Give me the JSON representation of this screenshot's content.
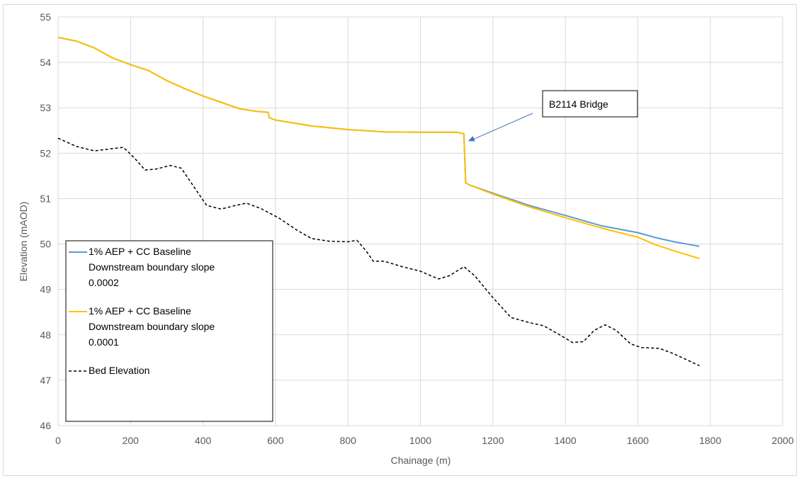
{
  "chart_data": {
    "type": "line",
    "xlabel": "Chainage (m)",
    "ylabel": "Elevation (mAOD)",
    "xlim": [
      0,
      2000
    ],
    "ylim": [
      46,
      55
    ],
    "xticks": [
      0,
      200,
      400,
      600,
      800,
      1000,
      1200,
      1400,
      1600,
      1800,
      2000
    ],
    "yticks": [
      46,
      47,
      48,
      49,
      50,
      51,
      52,
      53,
      54,
      55
    ],
    "grid": true,
    "legend_position": "bottom-left",
    "series": [
      {
        "name": "1% AEP + CC Baseline Downstream boundary slope 0.0002",
        "color": "#5b9bd5",
        "dash": "solid",
        "points": [
          [
            0,
            54.55
          ],
          [
            50,
            54.47
          ],
          [
            100,
            54.32
          ],
          [
            150,
            54.1
          ],
          [
            200,
            53.95
          ],
          [
            250,
            53.82
          ],
          [
            300,
            53.6
          ],
          [
            350,
            53.42
          ],
          [
            400,
            53.26
          ],
          [
            450,
            53.12
          ],
          [
            500,
            52.98
          ],
          [
            550,
            52.92
          ],
          [
            580,
            52.9
          ],
          [
            583,
            52.78
          ],
          [
            600,
            52.73
          ],
          [
            700,
            52.6
          ],
          [
            800,
            52.52
          ],
          [
            900,
            52.47
          ],
          [
            1000,
            52.46
          ],
          [
            1100,
            52.46
          ],
          [
            1120,
            52.43
          ],
          [
            1122,
            52.0
          ],
          [
            1125,
            51.35
          ],
          [
            1135,
            51.3
          ],
          [
            1200,
            51.12
          ],
          [
            1300,
            50.85
          ],
          [
            1400,
            50.63
          ],
          [
            1500,
            50.4
          ],
          [
            1600,
            50.25
          ],
          [
            1650,
            50.14
          ],
          [
            1700,
            50.05
          ],
          [
            1770,
            49.95
          ]
        ]
      },
      {
        "name": "1% AEP + CC Baseline Downstream boundary slope 0.0001",
        "color": "#ffc000",
        "dash": "solid",
        "points": [
          [
            0,
            54.55
          ],
          [
            50,
            54.47
          ],
          [
            100,
            54.32
          ],
          [
            150,
            54.1
          ],
          [
            200,
            53.95
          ],
          [
            250,
            53.82
          ],
          [
            300,
            53.6
          ],
          [
            350,
            53.42
          ],
          [
            400,
            53.26
          ],
          [
            450,
            53.12
          ],
          [
            500,
            52.98
          ],
          [
            550,
            52.92
          ],
          [
            580,
            52.9
          ],
          [
            583,
            52.78
          ],
          [
            600,
            52.73
          ],
          [
            700,
            52.6
          ],
          [
            800,
            52.52
          ],
          [
            900,
            52.47
          ],
          [
            1000,
            52.46
          ],
          [
            1100,
            52.46
          ],
          [
            1120,
            52.43
          ],
          [
            1122,
            52.0
          ],
          [
            1125,
            51.35
          ],
          [
            1135,
            51.3
          ],
          [
            1200,
            51.1
          ],
          [
            1300,
            50.82
          ],
          [
            1400,
            50.58
          ],
          [
            1500,
            50.35
          ],
          [
            1600,
            50.15
          ],
          [
            1650,
            49.98
          ],
          [
            1700,
            49.85
          ],
          [
            1770,
            49.68
          ]
        ]
      },
      {
        "name": "Bed Elevation",
        "color": "#000000",
        "dash": "dashed",
        "points": [
          [
            0,
            52.33
          ],
          [
            50,
            52.15
          ],
          [
            100,
            52.05
          ],
          [
            150,
            52.1
          ],
          [
            180,
            52.13
          ],
          [
            210,
            51.9
          ],
          [
            240,
            51.63
          ],
          [
            270,
            51.65
          ],
          [
            310,
            51.73
          ],
          [
            340,
            51.67
          ],
          [
            380,
            51.2
          ],
          [
            410,
            50.85
          ],
          [
            450,
            50.77
          ],
          [
            490,
            50.85
          ],
          [
            520,
            50.9
          ],
          [
            560,
            50.78
          ],
          [
            610,
            50.57
          ],
          [
            660,
            50.3
          ],
          [
            700,
            50.12
          ],
          [
            750,
            50.06
          ],
          [
            800,
            50.05
          ],
          [
            825,
            50.08
          ],
          [
            850,
            49.85
          ],
          [
            870,
            49.62
          ],
          [
            900,
            49.62
          ],
          [
            950,
            49.5
          ],
          [
            1000,
            49.4
          ],
          [
            1050,
            49.23
          ],
          [
            1080,
            49.3
          ],
          [
            1120,
            49.5
          ],
          [
            1150,
            49.3
          ],
          [
            1200,
            48.82
          ],
          [
            1250,
            48.38
          ],
          [
            1300,
            48.27
          ],
          [
            1340,
            48.2
          ],
          [
            1380,
            48.02
          ],
          [
            1420,
            47.83
          ],
          [
            1450,
            47.85
          ],
          [
            1480,
            48.1
          ],
          [
            1510,
            48.22
          ],
          [
            1540,
            48.1
          ],
          [
            1580,
            47.8
          ],
          [
            1610,
            47.72
          ],
          [
            1660,
            47.7
          ],
          [
            1700,
            47.58
          ],
          [
            1770,
            47.32
          ]
        ]
      }
    ],
    "legend": {
      "entries": [
        {
          "lines": [
            "1% AEP + CC Baseline",
            "Downstream boundary slope",
            "0.0002"
          ],
          "color": "#5b9bd5",
          "dash": "solid"
        },
        {
          "lines": [
            "1% AEP + CC Baseline",
            "Downstream boundary slope",
            "0.0001"
          ],
          "color": "#ffc000",
          "dash": "solid"
        },
        {
          "lines": [
            "Bed Elevation"
          ],
          "color": "#000000",
          "dash": "dashed"
        }
      ]
    },
    "annotation": {
      "text": "B2114 Bridge",
      "arrow_to": [
        1120,
        52.25
      ],
      "arrow_color": "#4472c4"
    }
  }
}
